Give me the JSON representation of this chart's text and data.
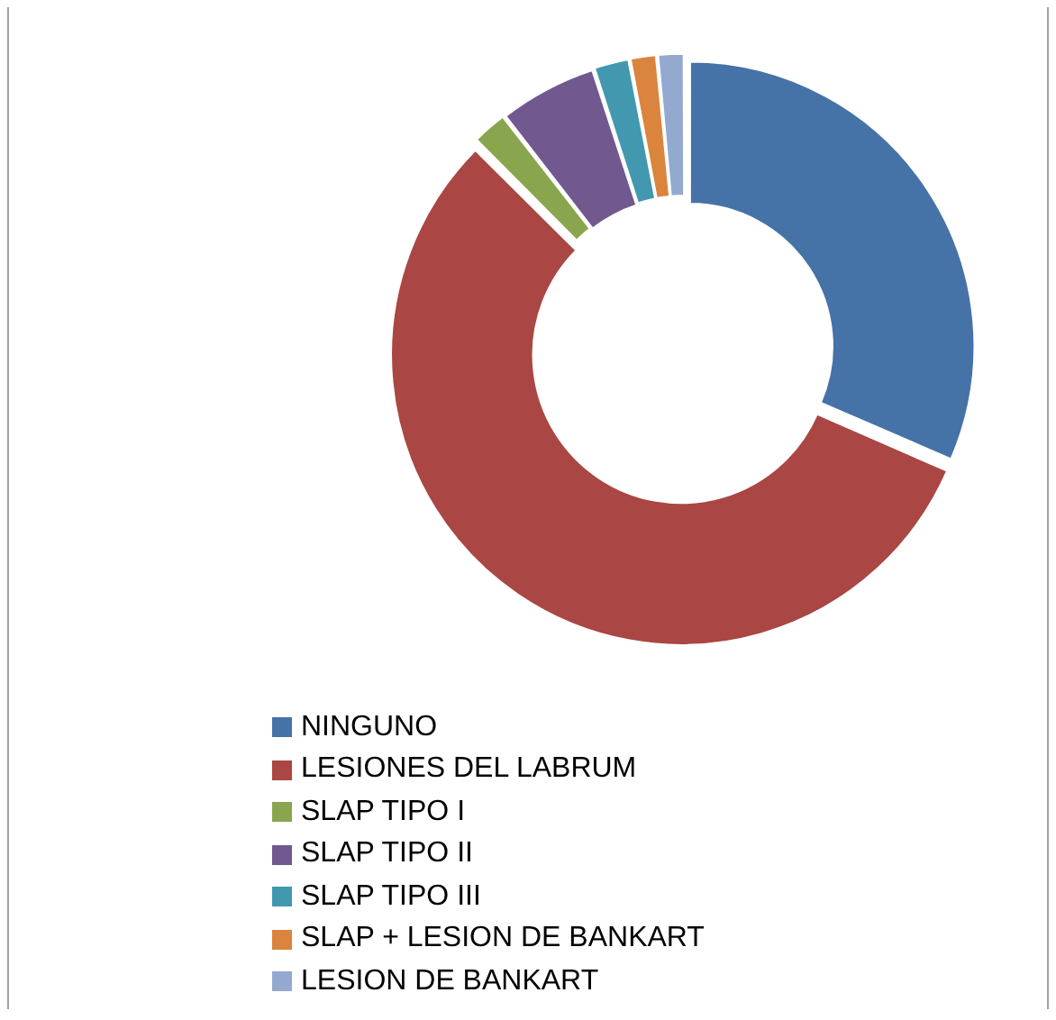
{
  "chart_data": {
    "type": "donut",
    "categories": [
      "NINGUNO",
      "LESIONES DEL LABRUM",
      "SLAP TIPO I",
      "SLAP TIPO II",
      "SLAP TIPO III",
      "SLAP + LESION DE BANKART",
      "LESION DE BANKART"
    ],
    "values": [
      31.5,
      56,
      2,
      5.5,
      2,
      1.5,
      1.5
    ],
    "colors": [
      "#4572a7",
      "#aa4643",
      "#89a54e",
      "#71588f",
      "#4198af",
      "#db843d",
      "#93a9cf"
    ],
    "legend": "bottom"
  }
}
